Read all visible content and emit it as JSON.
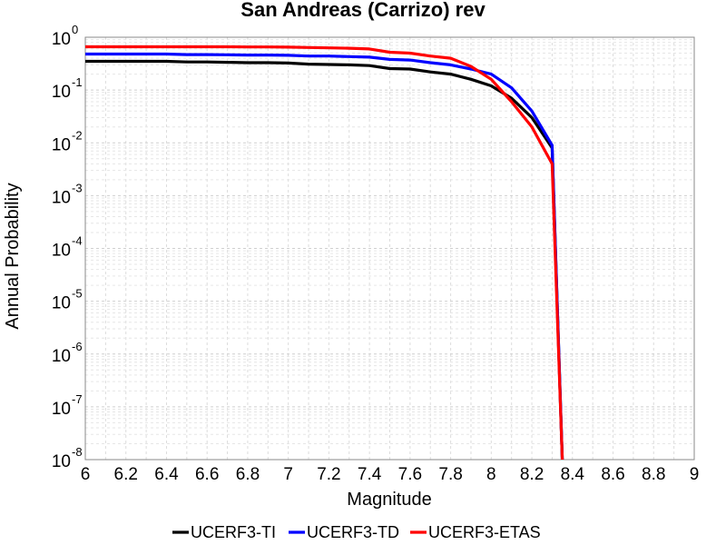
{
  "chart_data": {
    "type": "line",
    "title": "San Andreas (Carrizo) rev",
    "xlabel": "Magnitude",
    "ylabel": "Annual Probability",
    "x_range": [
      6,
      9
    ],
    "y_range": [
      1e-08,
      1
    ],
    "y_scale": "log",
    "grid": true,
    "legend_position": "bottom",
    "x_ticks": [
      "6",
      "6.2",
      "6.4",
      "6.6",
      "6.8",
      "7",
      "7.2",
      "7.4",
      "7.6",
      "7.8",
      "8",
      "8.2",
      "8.4",
      "8.6",
      "8.8",
      "9"
    ],
    "y_ticks": [
      {
        "base": "10",
        "exp": "0"
      },
      {
        "base": "10",
        "exp": "-1"
      },
      {
        "base": "10",
        "exp": "-2"
      },
      {
        "base": "10",
        "exp": "-3"
      },
      {
        "base": "10",
        "exp": "-4"
      },
      {
        "base": "10",
        "exp": "-5"
      },
      {
        "base": "10",
        "exp": "-6"
      },
      {
        "base": "10",
        "exp": "-7"
      },
      {
        "base": "10",
        "exp": "-8"
      }
    ],
    "series": [
      {
        "name": "UCERF3-TI",
        "color": "#000000",
        "x": [
          6.0,
          6.1,
          6.2,
          6.3,
          6.4,
          6.5,
          6.6,
          6.7,
          6.8,
          6.9,
          7.0,
          7.1,
          7.2,
          7.3,
          7.4,
          7.5,
          7.6,
          7.7,
          7.8,
          7.9,
          8.0,
          8.1,
          8.2,
          8.3,
          8.35
        ],
        "y": [
          0.35,
          0.35,
          0.35,
          0.35,
          0.35,
          0.34,
          0.34,
          0.335,
          0.33,
          0.33,
          0.325,
          0.31,
          0.305,
          0.3,
          0.29,
          0.255,
          0.25,
          0.22,
          0.2,
          0.16,
          0.12,
          0.07,
          0.03,
          0.008,
          1e-08
        ]
      },
      {
        "name": "UCERF3-TD",
        "color": "#0000ff",
        "x": [
          6.0,
          6.1,
          6.2,
          6.3,
          6.4,
          6.5,
          6.6,
          6.7,
          6.8,
          6.9,
          7.0,
          7.1,
          7.2,
          7.3,
          7.4,
          7.5,
          7.6,
          7.7,
          7.8,
          7.9,
          8.0,
          8.1,
          8.2,
          8.3,
          8.35
        ],
        "y": [
          0.48,
          0.48,
          0.48,
          0.48,
          0.48,
          0.47,
          0.47,
          0.465,
          0.46,
          0.46,
          0.455,
          0.44,
          0.44,
          0.43,
          0.42,
          0.38,
          0.37,
          0.33,
          0.3,
          0.25,
          0.2,
          0.11,
          0.04,
          0.009,
          1e-08
        ]
      },
      {
        "name": "UCERF3-ETAS",
        "color": "#ff0000",
        "x": [
          6.0,
          6.1,
          6.2,
          6.3,
          6.4,
          6.5,
          6.6,
          6.7,
          6.8,
          6.9,
          7.0,
          7.1,
          7.2,
          7.3,
          7.4,
          7.5,
          7.6,
          7.7,
          7.8,
          7.9,
          8.0,
          8.1,
          8.2,
          8.3,
          8.35
        ],
        "y": [
          0.66,
          0.66,
          0.66,
          0.66,
          0.66,
          0.66,
          0.66,
          0.66,
          0.655,
          0.655,
          0.65,
          0.64,
          0.63,
          0.62,
          0.6,
          0.52,
          0.5,
          0.44,
          0.4,
          0.28,
          0.16,
          0.06,
          0.02,
          0.004,
          1e-08
        ]
      }
    ]
  }
}
